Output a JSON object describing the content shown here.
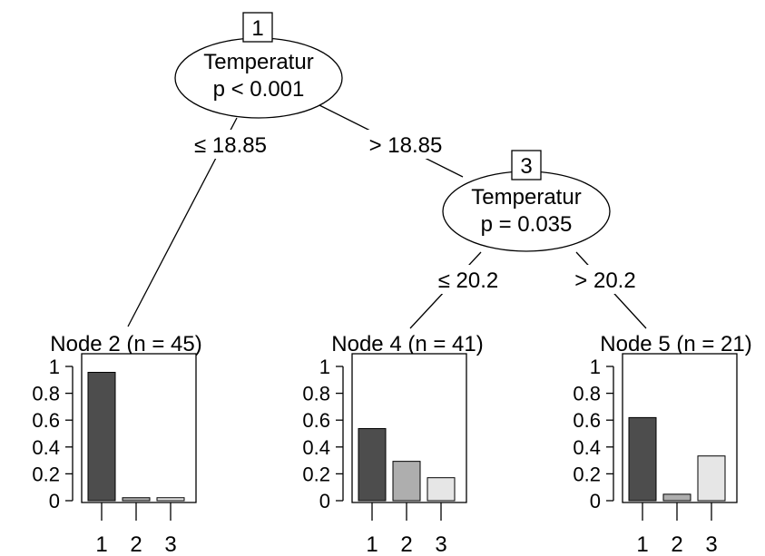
{
  "inner_nodes": [
    {
      "id": "1",
      "variable": "Temperatur",
      "pvalue": "p < 0.001"
    },
    {
      "id": "3",
      "variable": "Temperatur",
      "pvalue": "p = 0.035"
    }
  ],
  "edges": [
    {
      "from": "1",
      "to": "2",
      "label": "≤ 18.85"
    },
    {
      "from": "1",
      "to": "3",
      "label": "> 18.85"
    },
    {
      "from": "3",
      "to": "4",
      "label": "≤ 20.2"
    },
    {
      "from": "3",
      "to": "5",
      "label": "> 20.2"
    }
  ],
  "terminal_nodes": [
    {
      "id": "2",
      "title": "Node 2 (n = 45)",
      "values": [
        0.956,
        0.022,
        0.022
      ]
    },
    {
      "id": "4",
      "title": "Node 4 (n = 41)",
      "values": [
        0.537,
        0.293,
        0.171
      ]
    },
    {
      "id": "5",
      "title": "Node 5 (n = 21)",
      "values": [
        0.619,
        0.048,
        0.333
      ]
    }
  ],
  "y_ticks": [
    "0",
    "0.2",
    "0.4",
    "0.6",
    "0.8",
    "1"
  ],
  "x_ticks": [
    "1",
    "2",
    "3"
  ],
  "bar_colors": [
    "#4d4d4d",
    "#aeaeae",
    "#e6e6e6"
  ]
}
